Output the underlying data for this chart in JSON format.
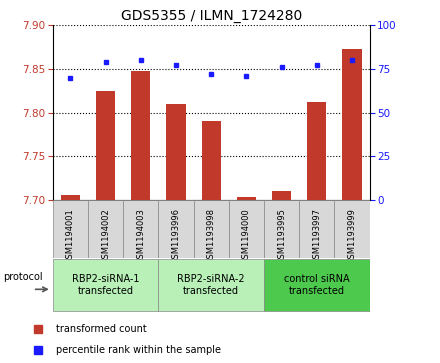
{
  "title": "GDS5355 / ILMN_1724280",
  "samples": [
    "GSM1194001",
    "GSM1194002",
    "GSM1194003",
    "GSM1193996",
    "GSM1193998",
    "GSM1194000",
    "GSM1193995",
    "GSM1193997",
    "GSM1193999"
  ],
  "transformed_counts": [
    7.705,
    7.825,
    7.848,
    7.81,
    7.79,
    7.703,
    7.71,
    7.812,
    7.873
  ],
  "percentile_ranks": [
    70,
    79,
    80,
    77,
    72,
    71,
    76,
    77,
    80
  ],
  "ylim_left": [
    7.7,
    7.9
  ],
  "ylim_right": [
    0,
    100
  ],
  "yticks_left": [
    7.7,
    7.75,
    7.8,
    7.85,
    7.9
  ],
  "yticks_right": [
    0,
    25,
    50,
    75,
    100
  ],
  "bar_color": "#c0392b",
  "dot_color": "#1a1aff",
  "protocol_groups": [
    {
      "label": "RBP2-siRNA-1\ntransfected",
      "start": 0,
      "end": 3,
      "color": "#b8f0b8"
    },
    {
      "label": "RBP2-siRNA-2\ntransfected",
      "start": 3,
      "end": 6,
      "color": "#b8f0b8"
    },
    {
      "label": "control siRNA\ntransfected",
      "start": 6,
      "end": 9,
      "color": "#4dc94d"
    }
  ],
  "legend_items": [
    {
      "label": "transformed count",
      "color": "#c0392b"
    },
    {
      "label": "percentile rank within the sample",
      "color": "#1a1aff"
    }
  ],
  "title_fontsize": 10,
  "tick_fontsize": 7.5,
  "sample_fontsize": 6
}
